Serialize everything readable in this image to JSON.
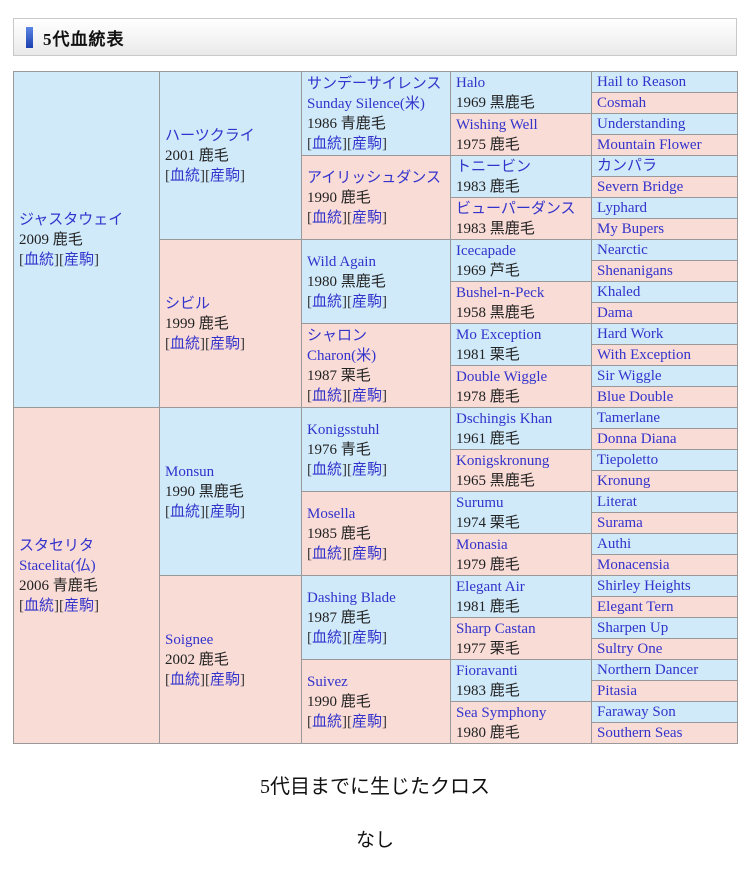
{
  "header": {
    "title": "5代血統表"
  },
  "colors": {
    "male_bg": "#d0eafa",
    "female_bg": "#f9dcd6",
    "link": "#3333cc",
    "border": "#999999",
    "accent_top": "#5a86e4",
    "accent_bottom": "#1c40ae"
  },
  "link_labels": [
    "血統",
    "産駒"
  ],
  "pedigree": {
    "gen1": [
      {
        "sex": "M",
        "name": "ジャスタウェイ",
        "name_en": "",
        "year_coat": "2009 鹿毛",
        "links": [
          "血統",
          "産駒"
        ]
      },
      {
        "sex": "F",
        "name": "スタセリタ",
        "name_en": "Stacelita(仏)",
        "year_coat": "2006 青鹿毛",
        "links": [
          "血統",
          "産駒"
        ]
      }
    ],
    "gen2": [
      {
        "sex": "M",
        "name": "ハーツクライ",
        "name_en": "",
        "year_coat": "2001 鹿毛",
        "links": [
          "血統",
          "産駒"
        ]
      },
      {
        "sex": "F",
        "name": "シビル",
        "name_en": "",
        "year_coat": "1999 鹿毛",
        "links": [
          "血統",
          "産駒"
        ]
      },
      {
        "sex": "M",
        "name": "Monsun",
        "name_en": "",
        "year_coat": "1990 黒鹿毛",
        "links": [
          "血統",
          "産駒"
        ]
      },
      {
        "sex": "F",
        "name": "Soignee",
        "name_en": "",
        "year_coat": "2002 鹿毛",
        "links": [
          "血統",
          "産駒"
        ]
      }
    ],
    "gen3": [
      {
        "sex": "M",
        "name": "サンデーサイレンス",
        "name_en": "Sunday Silence(米)",
        "year_coat": "1986 青鹿毛",
        "links": [
          "血統",
          "産駒"
        ]
      },
      {
        "sex": "F",
        "name": "アイリッシュダンス",
        "name_en": "",
        "year_coat": "1990 鹿毛",
        "links": [
          "血統",
          "産駒"
        ]
      },
      {
        "sex": "M",
        "name": "Wild Again",
        "name_en": "",
        "year_coat": "1980 黒鹿毛",
        "links": [
          "血統",
          "産駒"
        ]
      },
      {
        "sex": "F",
        "name": "シャロン",
        "name_en": "Charon(米)",
        "year_coat": "1987 栗毛",
        "links": [
          "血統",
          "産駒"
        ]
      },
      {
        "sex": "M",
        "name": "Konigsstuhl",
        "name_en": "",
        "year_coat": "1976 青毛",
        "links": [
          "血統",
          "産駒"
        ]
      },
      {
        "sex": "F",
        "name": "Mosella",
        "name_en": "",
        "year_coat": "1985 鹿毛",
        "links": [
          "血統",
          "産駒"
        ]
      },
      {
        "sex": "M",
        "name": "Dashing Blade",
        "name_en": "",
        "year_coat": "1987 鹿毛",
        "links": [
          "血統",
          "産駒"
        ]
      },
      {
        "sex": "F",
        "name": "Suivez",
        "name_en": "",
        "year_coat": "1990 鹿毛",
        "links": [
          "血統",
          "産駒"
        ]
      }
    ],
    "gen4": [
      {
        "sex": "M",
        "name": "Halo",
        "year_coat": "1969 黒鹿毛"
      },
      {
        "sex": "F",
        "name": "Wishing Well",
        "year_coat": "1975 鹿毛"
      },
      {
        "sex": "M",
        "name": "トニービン",
        "year_coat": "1983 鹿毛"
      },
      {
        "sex": "F",
        "name": "ビューパーダンス",
        "year_coat": "1983 黒鹿毛"
      },
      {
        "sex": "M",
        "name": "Icecapade",
        "year_coat": "1969 芦毛"
      },
      {
        "sex": "F",
        "name": "Bushel-n-Peck",
        "year_coat": "1958 黒鹿毛"
      },
      {
        "sex": "M",
        "name": "Mo Exception",
        "year_coat": "1981 栗毛"
      },
      {
        "sex": "F",
        "name": "Double Wiggle",
        "year_coat": "1978 鹿毛"
      },
      {
        "sex": "M",
        "name": "Dschingis Khan",
        "year_coat": "1961 鹿毛"
      },
      {
        "sex": "F",
        "name": "Konigskronung",
        "year_coat": "1965 黒鹿毛"
      },
      {
        "sex": "M",
        "name": "Surumu",
        "year_coat": "1974 栗毛"
      },
      {
        "sex": "F",
        "name": "Monasia",
        "year_coat": "1979 鹿毛"
      },
      {
        "sex": "M",
        "name": "Elegant Air",
        "year_coat": "1981 鹿毛"
      },
      {
        "sex": "F",
        "name": "Sharp Castan",
        "year_coat": "1977 栗毛"
      },
      {
        "sex": "M",
        "name": "Fioravanti",
        "year_coat": "1983 鹿毛"
      },
      {
        "sex": "F",
        "name": "Sea Symphony",
        "year_coat": "1980 鹿毛"
      }
    ],
    "gen5": [
      {
        "sex": "M",
        "name": "Hail to Reason"
      },
      {
        "sex": "F",
        "name": "Cosmah"
      },
      {
        "sex": "M",
        "name": "Understanding"
      },
      {
        "sex": "F",
        "name": "Mountain Flower"
      },
      {
        "sex": "M",
        "name": "カンパラ"
      },
      {
        "sex": "F",
        "name": "Severn Bridge"
      },
      {
        "sex": "M",
        "name": "Lyphard"
      },
      {
        "sex": "F",
        "name": "My Bupers"
      },
      {
        "sex": "M",
        "name": "Nearctic"
      },
      {
        "sex": "F",
        "name": "Shenanigans"
      },
      {
        "sex": "M",
        "name": "Khaled"
      },
      {
        "sex": "F",
        "name": "Dama"
      },
      {
        "sex": "M",
        "name": "Hard Work"
      },
      {
        "sex": "F",
        "name": "With Exception"
      },
      {
        "sex": "M",
        "name": "Sir Wiggle"
      },
      {
        "sex": "F",
        "name": "Blue Double"
      },
      {
        "sex": "M",
        "name": "Tamerlane"
      },
      {
        "sex": "F",
        "name": "Donna Diana"
      },
      {
        "sex": "M",
        "name": "Tiepoletto"
      },
      {
        "sex": "F",
        "name": "Kronung"
      },
      {
        "sex": "M",
        "name": "Literat"
      },
      {
        "sex": "F",
        "name": "Surama"
      },
      {
        "sex": "M",
        "name": "Authi"
      },
      {
        "sex": "F",
        "name": "Monacensia"
      },
      {
        "sex": "M",
        "name": "Shirley Heights"
      },
      {
        "sex": "F",
        "name": "Elegant Tern"
      },
      {
        "sex": "M",
        "name": "Sharpen Up"
      },
      {
        "sex": "F",
        "name": "Sultry One"
      },
      {
        "sex": "M",
        "name": "Northern Dancer"
      },
      {
        "sex": "F",
        "name": "Pitasia"
      },
      {
        "sex": "M",
        "name": "Faraway Son"
      },
      {
        "sex": "F",
        "name": "Southern Seas"
      }
    ]
  },
  "footer": {
    "cross_title": "5代目までに生じたクロス",
    "cross_value": "なし"
  }
}
